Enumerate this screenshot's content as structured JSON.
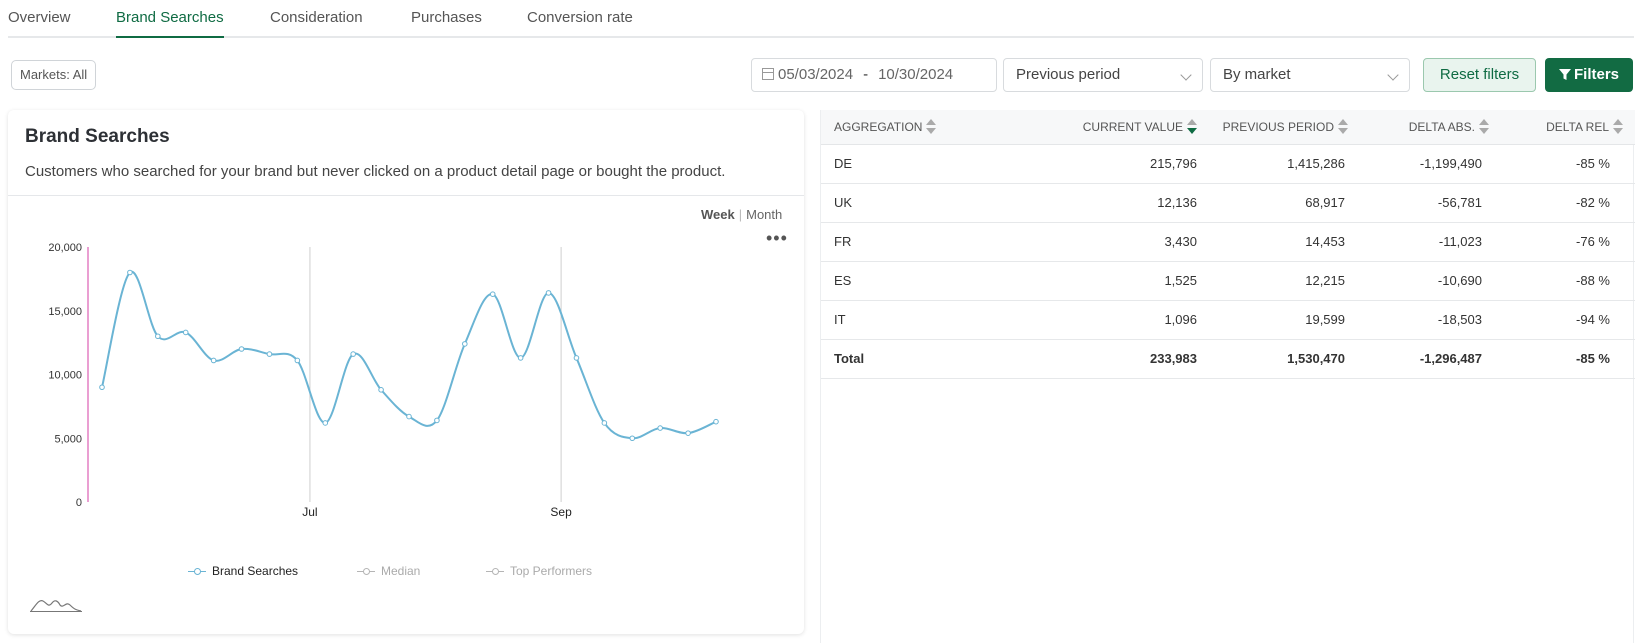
{
  "tabs": [
    {
      "label": "Overview",
      "active": false
    },
    {
      "label": "Brand Searches",
      "active": true
    },
    {
      "label": "Consideration",
      "active": false
    },
    {
      "label": "Purchases",
      "active": false
    },
    {
      "label": "Conversion rate",
      "active": false
    }
  ],
  "filters": {
    "markets_label": "Markets: All",
    "date_start": "05/03/2024",
    "date_sep": "-",
    "date_end": "10/30/2024",
    "comparison": "Previous period",
    "grouping": "By market",
    "reset_label": "Reset filters",
    "filters_label": "Filters"
  },
  "card": {
    "title": "Brand Searches",
    "description": "Customers who searched for your brand but never clicked on a product detail page or bought the product.",
    "period_week": "Week",
    "period_sep": "|",
    "period_month": "Month",
    "menu_icon": "more-horizontal-icon"
  },
  "chart_data": {
    "type": "line",
    "title": "",
    "xlabel": "",
    "ylabel": "",
    "ylim": [
      0,
      20000
    ],
    "y_ticks": [
      "0",
      "5,000",
      "10,000",
      "15,000",
      "20,000"
    ],
    "x_tick_labels": [
      {
        "label": "Jul",
        "week_index": 8
      },
      {
        "label": "Sep",
        "week_index": 17
      }
    ],
    "series": [
      {
        "name": "Brand Searches",
        "color": "#6ab4d4",
        "values": [
          9000,
          18000,
          13000,
          13300,
          11100,
          12000,
          11600,
          11100,
          6200,
          11600,
          8800,
          6700,
          6400,
          12400,
          16300,
          11300,
          16400,
          11300,
          6200,
          5000,
          5800,
          5400,
          6300
        ]
      }
    ],
    "legend": [
      {
        "label": "Brand Searches",
        "color": "#6ab4d4",
        "muted": false
      },
      {
        "label": "Median",
        "color": "#b5b5b5",
        "muted": true
      },
      {
        "label": "Top Performers",
        "color": "#b5b5b5",
        "muted": true
      }
    ],
    "grid": false
  },
  "table": {
    "headers": [
      "AGGREGATION",
      "CURRENT VALUE",
      "PREVIOUS PERIOD",
      "DELTA ABS.",
      "DELTA REL"
    ],
    "sorted_column": "CURRENT VALUE",
    "rows": [
      {
        "name": "DE",
        "current": "215,796",
        "previous": "1,415,286",
        "delta_abs": "-1,199,490",
        "delta_rel": "-85 %"
      },
      {
        "name": "UK",
        "current": "12,136",
        "previous": "68,917",
        "delta_abs": "-56,781",
        "delta_rel": "-82 %"
      },
      {
        "name": "FR",
        "current": "3,430",
        "previous": "14,453",
        "delta_abs": "-11,023",
        "delta_rel": "-76 %"
      },
      {
        "name": "ES",
        "current": "1,525",
        "previous": "12,215",
        "delta_abs": "-10,690",
        "delta_rel": "-88 %"
      },
      {
        "name": "IT",
        "current": "1,096",
        "previous": "19,599",
        "delta_abs": "-18,503",
        "delta_rel": "-94 %"
      }
    ],
    "total": {
      "name": "Total",
      "current": "233,983",
      "previous": "1,530,470",
      "delta_abs": "-1,296,487",
      "delta_rel": "-85 %"
    }
  }
}
